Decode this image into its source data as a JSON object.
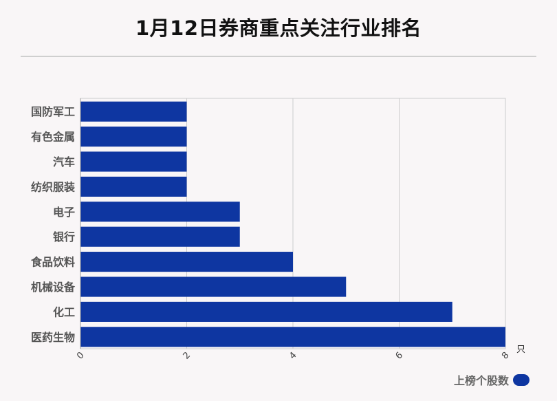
{
  "title": "1月12日券商重点关注行业排名",
  "colors": {
    "bar": "#0e36a1",
    "grid": "#cccccc",
    "background": "#f9f6f7"
  },
  "chart_data": {
    "type": "bar",
    "orientation": "horizontal",
    "title": "1月12日券商重点关注行业排名",
    "categories": [
      "国防军工",
      "有色金属",
      "汽车",
      "纺织服装",
      "电子",
      "银行",
      "食品饮料",
      "机械设备",
      "化工",
      "医药生物"
    ],
    "series": [
      {
        "name": "上榜个股数",
        "values": [
          2,
          2,
          2,
          2,
          3,
          3,
          4,
          5,
          7,
          8
        ]
      }
    ],
    "xlim": [
      0,
      8
    ],
    "xticks": [
      "0",
      "2",
      "4",
      "6",
      "8"
    ],
    "x_unit": "只",
    "grid": true,
    "legend_position": "bottom-right"
  }
}
